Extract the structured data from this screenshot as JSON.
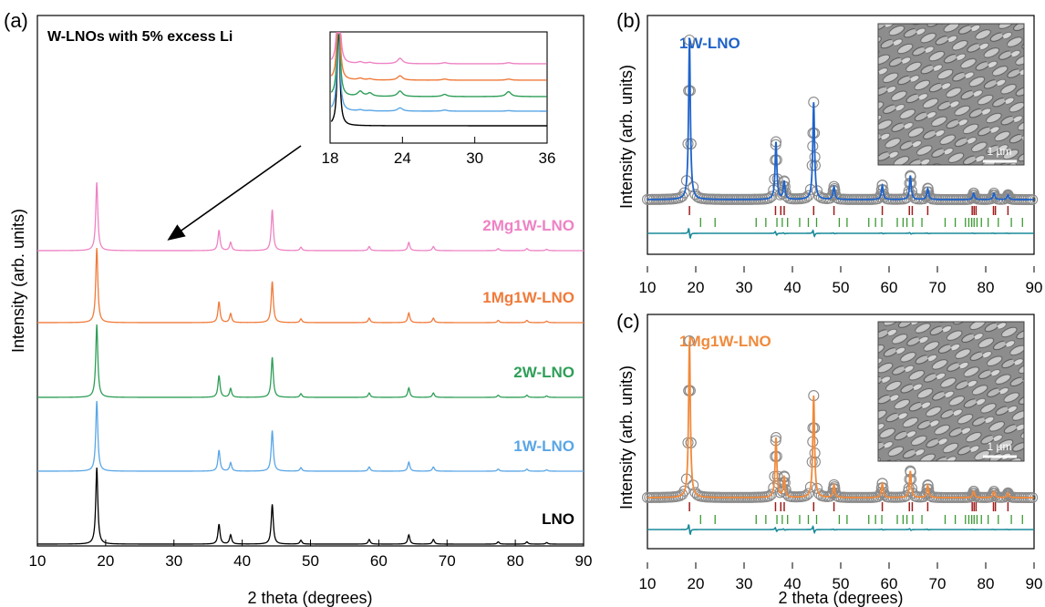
{
  "chart_data": [
    {
      "panel": "(a)",
      "type": "line",
      "title": "W-LNOs with 5% excess Li",
      "xlabel": "2 theta (degrees)",
      "ylabel": "Intensity (arb. units)",
      "xlim": [
        10,
        90
      ],
      "xticks": [
        "10",
        "20",
        "30",
        "40",
        "50",
        "60",
        "70",
        "80",
        "90"
      ],
      "peaks_2theta": [
        18.7,
        36.6,
        38.3,
        44.4,
        48.6,
        58.6,
        64.4,
        68.0,
        77.5,
        81.7,
        84.6
      ],
      "series": [
        {
          "name": "LNO",
          "color": "#000000",
          "relative_intensity": [
            1.0,
            0.26,
            0.12,
            0.52,
            0.05,
            0.06,
            0.12,
            0.06,
            0.03,
            0.03,
            0.02
          ]
        },
        {
          "name": "1W-LNO",
          "color": "#5aa6e6",
          "relative_intensity": [
            1.0,
            0.3,
            0.12,
            0.58,
            0.05,
            0.06,
            0.13,
            0.06,
            0.03,
            0.03,
            0.02
          ]
        },
        {
          "name": "2W-LNO",
          "color": "#2e9e57",
          "relative_intensity": [
            1.0,
            0.3,
            0.12,
            0.55,
            0.05,
            0.06,
            0.13,
            0.06,
            0.03,
            0.03,
            0.02
          ]
        },
        {
          "name": "1Mg1W-LNO",
          "color": "#f07a3a",
          "relative_intensity": [
            1.0,
            0.28,
            0.12,
            0.55,
            0.05,
            0.06,
            0.13,
            0.06,
            0.03,
            0.03,
            0.02
          ]
        },
        {
          "name": "2Mg1W-LNO",
          "color": "#ee82c4",
          "relative_intensity": [
            1.0,
            0.3,
            0.12,
            0.6,
            0.05,
            0.06,
            0.12,
            0.06,
            0.03,
            0.03,
            0.02
          ]
        }
      ],
      "inset": {
        "xlim": [
          18,
          36
        ],
        "xticks": [
          "18",
          "24",
          "30",
          "36"
        ],
        "small_peaks_2theta": [
          20.5,
          21.3,
          23.8,
          27.5,
          32.8
        ]
      }
    },
    {
      "panel": "(b)",
      "type": "line",
      "label": "1W-LNO",
      "xlabel": "",
      "ylabel": "Intensity (arb. units)",
      "xlim": [
        10,
        90
      ],
      "xticks": [
        "10",
        "20",
        "30",
        "40",
        "50",
        "60",
        "70",
        "80",
        "90"
      ],
      "observed_color": "#8a8a8a",
      "calc_color": "#1f63c9",
      "bragg_phase1_color": "#a01d1d",
      "bragg_phase2_color": "#3a9a32",
      "difference_color": "#1a8a9a",
      "scale_bar": "1 µm",
      "peaks_2theta": [
        18.7,
        36.6,
        38.3,
        44.4,
        48.6,
        58.6,
        64.4,
        68.0,
        77.5,
        81.7,
        84.6
      ],
      "peak_heights": [
        1.0,
        0.36,
        0.11,
        0.61,
        0.08,
        0.09,
        0.15,
        0.07,
        0.04,
        0.04,
        0.03
      ]
    },
    {
      "panel": "(c)",
      "type": "line",
      "label": "1Mg1W-LNO",
      "xlabel": "2 theta (degrees)",
      "ylabel": "Intensity (arb. units)",
      "xlim": [
        10,
        90
      ],
      "xticks": [
        "10",
        "20",
        "30",
        "40",
        "50",
        "60",
        "70",
        "80",
        "90"
      ],
      "observed_color": "#8a8a8a",
      "calc_color": "#f08a3c",
      "bragg_phase1_color": "#a01d1d",
      "bragg_phase2_color": "#3a9a32",
      "difference_color": "#1a8a9a",
      "scale_bar": "1 µm",
      "peaks_2theta": [
        18.7,
        36.6,
        38.3,
        44.4,
        48.6,
        58.6,
        64.4,
        68.0,
        77.5,
        81.7,
        84.6
      ],
      "peak_heights": [
        1.0,
        0.38,
        0.13,
        0.65,
        0.08,
        0.09,
        0.17,
        0.08,
        0.04,
        0.04,
        0.03
      ]
    }
  ]
}
